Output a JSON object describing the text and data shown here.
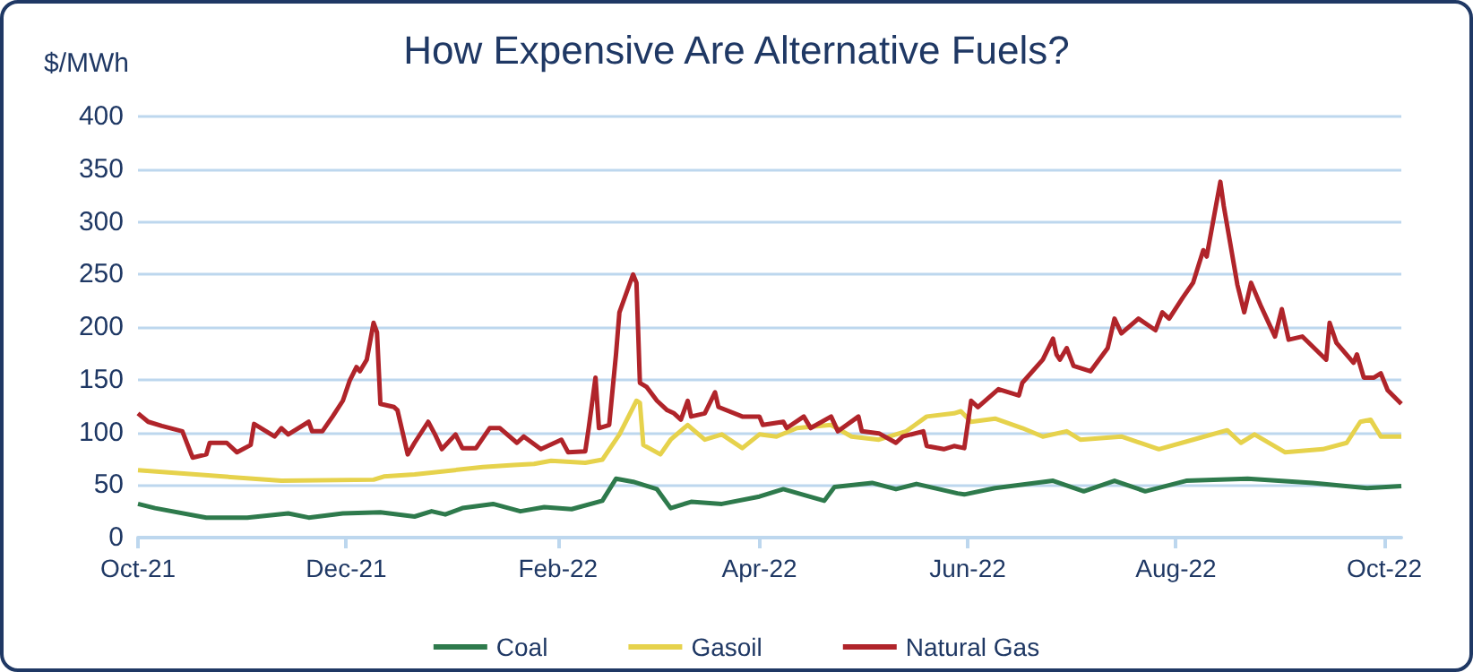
{
  "chart_data": {
    "type": "line",
    "title": "How Expensive Are Alternative Fuels?",
    "ylabel": "$/MWh",
    "xlim": [
      "2021-10-01",
      "2022-10-06"
    ],
    "xticks": [
      {
        "value": "2021-10-01",
        "label": "Oct-21"
      },
      {
        "value": "2021-12-01",
        "label": "Dec-21"
      },
      {
        "value": "2022-02-01",
        "label": "Feb-22"
      },
      {
        "value": "2022-04-01",
        "label": "Apr-22"
      },
      {
        "value": "2022-06-01",
        "label": "Jun-22"
      },
      {
        "value": "2022-08-01",
        "label": "Aug-22"
      },
      {
        "value": "2022-10-01",
        "label": "Oct-22"
      }
    ],
    "ylim": [
      0,
      400
    ],
    "yticks": [
      0,
      50,
      100,
      150,
      200,
      250,
      300,
      350,
      400
    ],
    "grid": "y",
    "legend": "bottom",
    "series": [
      {
        "name": "Coal",
        "color": "#2e7a4c",
        "x": [
          "2021-10-01",
          "2021-10-06",
          "2021-10-21",
          "2021-11-02",
          "2021-11-14",
          "2021-11-20",
          "2021-11-30",
          "2021-12-11",
          "2021-12-21",
          "2021-12-26",
          "2021-12-30",
          "2022-01-04",
          "2022-01-13",
          "2022-01-21",
          "2022-01-28",
          "2022-02-05",
          "2022-02-14",
          "2022-02-18",
          "2022-02-23",
          "2022-03-02",
          "2022-03-06",
          "2022-03-12",
          "2022-03-21",
          "2022-04-01",
          "2022-04-08",
          "2022-04-20",
          "2022-04-23",
          "2022-05-04",
          "2022-05-11",
          "2022-05-17",
          "2022-05-29",
          "2022-05-31",
          "2022-06-09",
          "2022-06-26",
          "2022-07-05",
          "2022-07-14",
          "2022-07-23",
          "2022-08-04",
          "2022-08-22",
          "2022-09-10",
          "2022-09-26",
          "2022-10-06"
        ],
        "values": [
          32,
          28,
          19,
          19,
          23,
          19,
          23,
          24,
          20,
          25,
          22,
          28,
          32,
          25,
          29,
          27,
          35,
          56,
          53,
          46,
          28,
          34,
          32,
          39,
          46,
          35,
          48,
          52,
          46,
          51,
          42,
          41,
          47,
          54,
          44,
          54,
          44,
          54,
          56,
          52,
          47,
          49
        ]
      },
      {
        "name": "Gasoil",
        "color": "#e6d24c",
        "x": [
          "2021-10-01",
          "2021-11-12",
          "2021-12-09",
          "2021-12-12",
          "2021-12-21",
          "2022-01-10",
          "2022-01-19",
          "2022-01-25",
          "2022-01-30",
          "2022-02-09",
          "2022-02-14",
          "2022-02-19",
          "2022-02-24",
          "2022-02-25",
          "2022-02-26",
          "2022-03-03",
          "2022-03-06",
          "2022-03-11",
          "2022-03-16",
          "2022-03-21",
          "2022-03-27",
          "2022-04-01",
          "2022-04-06",
          "2022-04-12",
          "2022-04-22",
          "2022-04-28",
          "2022-05-06",
          "2022-05-14",
          "2022-05-20",
          "2022-05-28",
          "2022-05-30",
          "2022-06-02",
          "2022-06-09",
          "2022-06-17",
          "2022-06-23",
          "2022-06-30",
          "2022-07-04",
          "2022-07-16",
          "2022-07-27",
          "2022-08-06",
          "2022-08-16",
          "2022-08-20",
          "2022-08-24",
          "2022-09-02",
          "2022-09-13",
          "2022-09-20",
          "2022-09-24",
          "2022-09-27",
          "2022-09-30",
          "2022-10-06"
        ],
        "values": [
          64,
          54,
          55,
          58,
          60,
          67,
          69,
          70,
          73,
          71,
          74,
          98,
          130,
          128,
          88,
          79,
          93,
          107,
          93,
          98,
          85,
          98,
          96,
          104,
          107,
          96,
          93,
          101,
          115,
          118,
          120,
          110,
          113,
          104,
          96,
          101,
          93,
          96,
          84,
          93,
          102,
          90,
          98,
          81,
          84,
          90,
          110,
          112,
          96,
          96
        ]
      },
      {
        "name": "Natural Gas",
        "color": "#b0242a",
        "x": [
          "2021-10-01",
          "2021-10-04",
          "2021-10-08",
          "2021-10-14",
          "2021-10-17",
          "2021-10-21",
          "2021-10-22",
          "2021-10-27",
          "2021-10-30",
          "2021-11-03",
          "2021-11-04",
          "2021-11-10",
          "2021-11-12",
          "2021-11-14",
          "2021-11-20",
          "2021-11-21",
          "2021-11-24",
          "2021-11-27",
          "2021-11-30",
          "2021-12-02",
          "2021-12-04",
          "2021-12-05",
          "2021-12-07",
          "2021-12-09",
          "2021-12-10",
          "2021-12-11",
          "2021-12-15",
          "2021-12-16",
          "2021-12-19",
          "2021-12-21",
          "2021-12-25",
          "2021-12-27",
          "2021-12-29",
          "2022-01-02",
          "2022-01-04",
          "2022-01-08",
          "2022-01-12",
          "2022-01-15",
          "2022-01-20",
          "2022-01-22",
          "2022-01-27",
          "2022-02-02",
          "2022-02-04",
          "2022-02-09",
          "2022-02-10",
          "2022-02-12",
          "2022-02-13",
          "2022-02-16",
          "2022-02-18",
          "2022-02-19",
          "2022-02-23",
          "2022-02-24",
          "2022-02-25",
          "2022-02-27",
          "2022-03-02",
          "2022-03-05",
          "2022-03-07",
          "2022-03-09",
          "2022-03-11",
          "2022-03-12",
          "2022-03-16",
          "2022-03-19",
          "2022-03-20",
          "2022-03-27",
          "2022-04-01",
          "2022-04-02",
          "2022-04-08",
          "2022-04-09",
          "2022-04-14",
          "2022-04-16",
          "2022-04-22",
          "2022-04-24",
          "2022-04-30",
          "2022-05-01",
          "2022-05-06",
          "2022-05-11",
          "2022-05-13",
          "2022-05-19",
          "2022-05-20",
          "2022-05-25",
          "2022-05-28",
          "2022-05-31",
          "2022-06-02",
          "2022-06-04",
          "2022-06-10",
          "2022-06-16",
          "2022-06-17",
          "2022-06-23",
          "2022-06-26",
          "2022-06-27",
          "2022-06-28",
          "2022-06-30",
          "2022-07-02",
          "2022-07-07",
          "2022-07-12",
          "2022-07-14",
          "2022-07-16",
          "2022-07-21",
          "2022-07-26",
          "2022-07-28",
          "2022-07-30",
          "2022-08-03",
          "2022-08-06",
          "2022-08-09",
          "2022-08-10",
          "2022-08-14",
          "2022-08-15",
          "2022-08-19",
          "2022-08-21",
          "2022-08-23",
          "2022-08-26",
          "2022-08-30",
          "2022-09-01",
          "2022-09-03",
          "2022-09-07",
          "2022-09-14",
          "2022-09-15",
          "2022-09-17",
          "2022-09-22",
          "2022-09-23",
          "2022-09-25",
          "2022-09-28",
          "2022-09-30",
          "2022-10-02",
          "2022-10-06"
        ],
        "values": [
          118,
          110,
          106,
          101,
          76,
          79,
          90,
          90,
          81,
          88,
          108,
          96,
          104,
          98,
          110,
          101,
          101,
          115,
          130,
          149,
          162,
          158,
          169,
          204,
          195,
          127,
          124,
          121,
          79,
          90,
          110,
          98,
          84,
          98,
          85,
          85,
          104,
          104,
          90,
          96,
          84,
          93,
          81,
          82,
          104,
          152,
          104,
          107,
          174,
          214,
          250,
          242,
          147,
          143,
          130,
          121,
          118,
          112,
          130,
          115,
          118,
          138,
          124,
          115,
          115,
          107,
          110,
          104,
          115,
          104,
          115,
          101,
          115,
          101,
          99,
          90,
          96,
          101,
          87,
          84,
          87,
          85,
          130,
          124,
          141,
          135,
          147,
          169,
          189,
          174,
          169,
          180,
          163,
          158,
          180,
          208,
          194,
          208,
          197,
          214,
          208,
          228,
          242,
          273,
          267,
          338,
          315,
          240,
          214,
          242,
          219,
          191,
          217,
          188,
          191,
          169,
          204,
          185,
          166,
          174,
          152,
          152,
          156,
          140,
          127
        ]
      }
    ]
  }
}
